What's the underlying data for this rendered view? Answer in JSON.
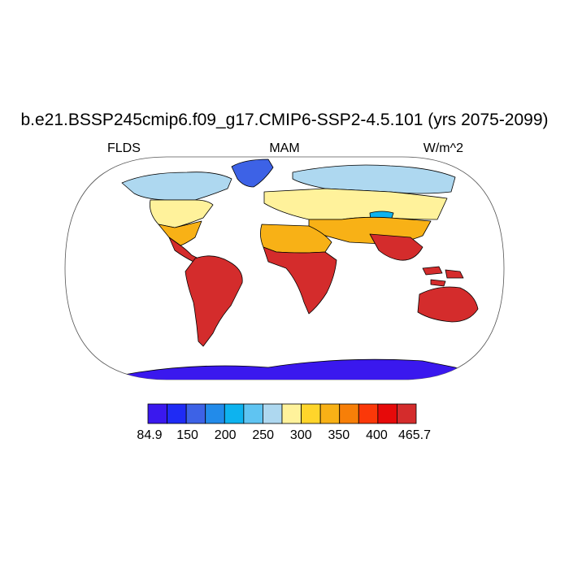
{
  "title": "b.e21.BSSP245cmip6.f09_g17.CMIP6-SSP2-4.5.101 (yrs 2075-2099)",
  "subtitles": {
    "left": "FLDS",
    "center": "MAM",
    "right": "W/m^2"
  },
  "colorbar": {
    "min": 84.9,
    "max": 465.7,
    "tick_labels": [
      "84.9",
      "150",
      "200",
      "250",
      "300",
      "350",
      "400",
      "465.7"
    ],
    "colors": [
      "#3a18ee",
      "#1f2bf5",
      "#3d62e6",
      "#228bea",
      "#0db3ef",
      "#5fc4f2",
      "#aed8f0",
      "#fff29b",
      "#ffd52b",
      "#f8b116",
      "#f77f08",
      "#fb3809",
      "#e60a0a",
      "#d42c2c"
    ]
  },
  "map_colors": {
    "ocean": "#ffffff",
    "antarctica": "#3a18ee",
    "greenland": "#3d62e6",
    "arctic": "#aed8f0",
    "temperate": "#fff29b",
    "subtropic": "#f8b116",
    "tropic": "#d42c2c",
    "coast": "#000000"
  }
}
